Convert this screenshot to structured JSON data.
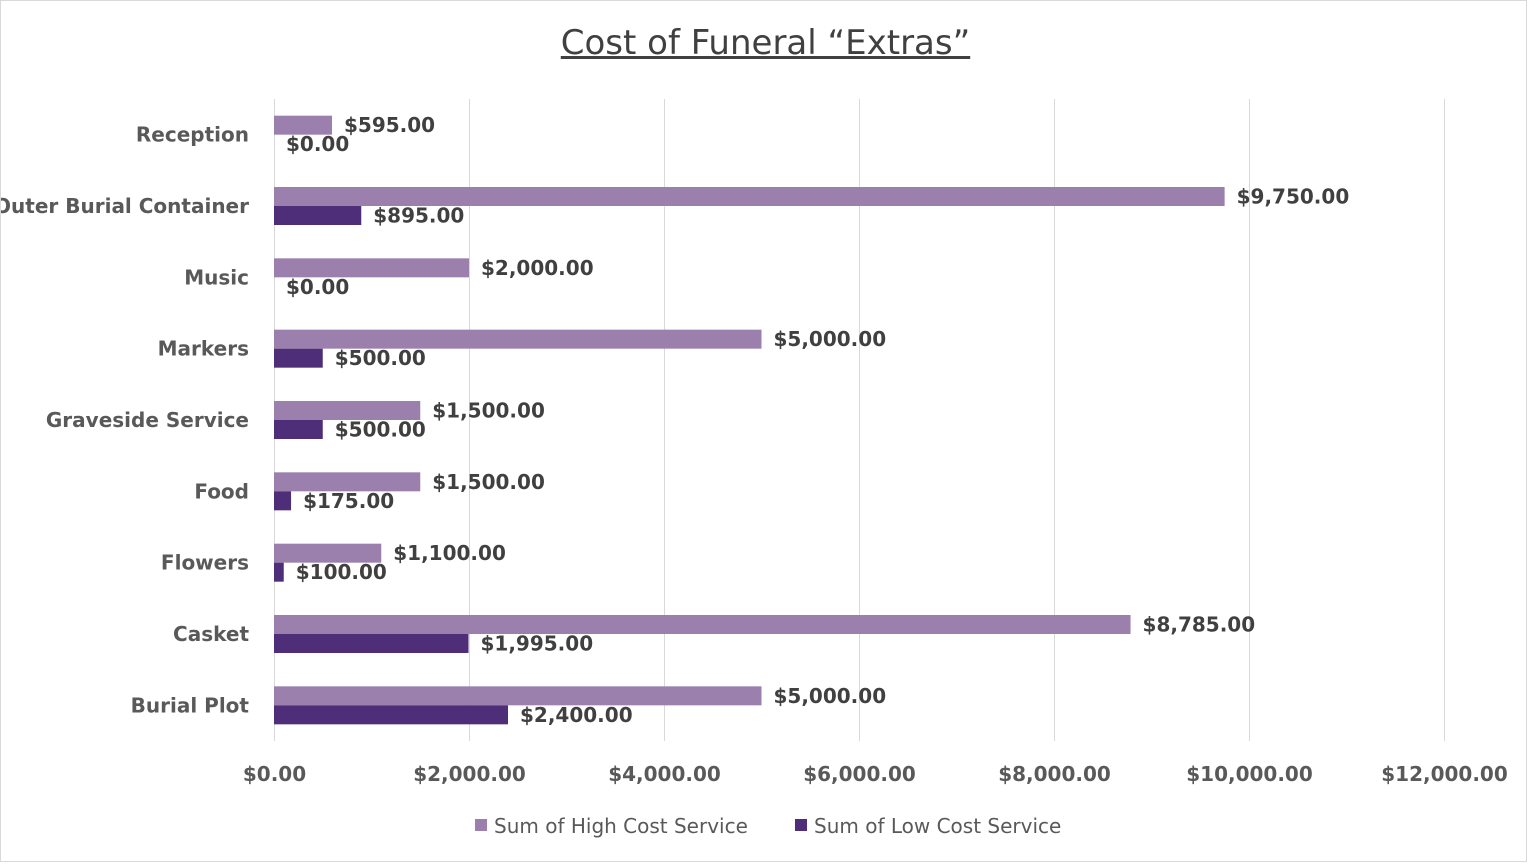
{
  "chart_data": {
    "type": "bar",
    "orientation": "horizontal",
    "title": "Cost of Funeral “Extras”",
    "xlabel": "",
    "ylabel": "",
    "categories": [
      "Burial Plot",
      "Casket",
      "Flowers",
      "Food",
      "Graveside Service",
      "Markers",
      "Music",
      "Outer Burial Container",
      "Reception"
    ],
    "series": [
      {
        "name": "Sum of High Cost Service",
        "color": "#9b80ae",
        "values": [
          5000,
          8785,
          1100,
          1500,
          1500,
          5000,
          2000,
          9750,
          595
        ],
        "labels": [
          "$5,000.00",
          "$8,785.00",
          "$1,100.00",
          "$1,500.00",
          "$1,500.00",
          "$5,000.00",
          "$2,000.00",
          "$9,750.00",
          "$595.00"
        ]
      },
      {
        "name": "Sum of Low Cost Service",
        "color": "#4e2d79",
        "values": [
          2400,
          1995,
          100,
          175,
          500,
          500,
          0,
          895,
          0
        ],
        "labels": [
          "$2,400.00",
          "$1,995.00",
          "$100.00",
          "$175.00",
          "$500.00",
          "$500.00",
          "$0.00",
          "$895.00",
          "$0.00"
        ]
      }
    ],
    "xlim": [
      0,
      12000
    ],
    "xticks": [
      0,
      2000,
      4000,
      6000,
      8000,
      10000,
      12000
    ],
    "xtick_labels": [
      "$0.00",
      "$2,000.00",
      "$4,000.00",
      "$6,000.00",
      "$8,000.00",
      "$10,000.00",
      "$12,000.00"
    ],
    "grid": "vertical",
    "legend": "bottom",
    "gridline_color": "#d9d9d9"
  }
}
